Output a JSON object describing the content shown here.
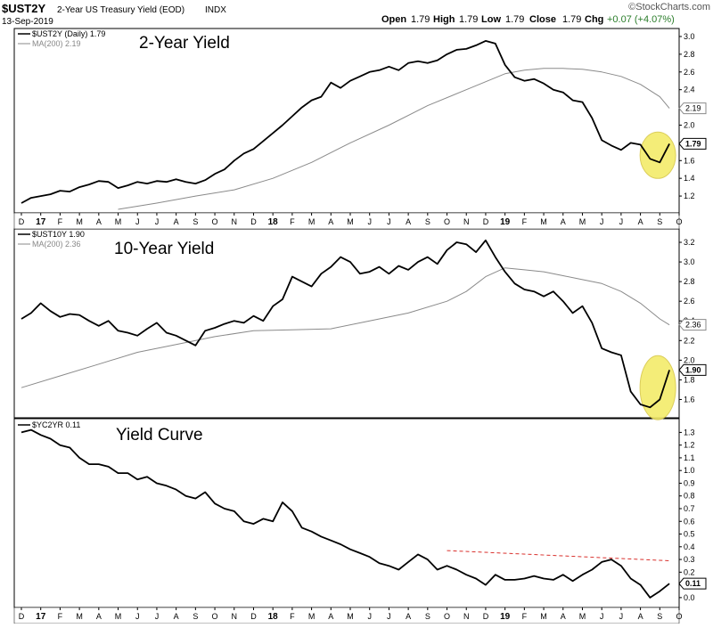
{
  "header": {
    "symbol": "$UST2Y",
    "description": "2-Year US Treasury Yield (EOD)",
    "exchange": "INDX",
    "date": "13-Sep-2019",
    "open_label": "Open",
    "open": "1.79",
    "high_label": "High",
    "high": "1.79",
    "low_label": "Low",
    "low": "1.79",
    "close_label": "Close",
    "close": "1.79",
    "chg_label": "Chg",
    "chg": "+0.07 (+4.07%)",
    "chg_color": "#2a7d2a",
    "brand": "©StockCharts.com"
  },
  "x_axis": {
    "labels": [
      "D",
      "17",
      "F",
      "M",
      "A",
      "M",
      "J",
      "J",
      "A",
      "S",
      "O",
      "N",
      "D",
      "18",
      "F",
      "M",
      "A",
      "M",
      "J",
      "J",
      "A",
      "S",
      "O",
      "N",
      "D",
      "19",
      "F",
      "M",
      "A",
      "M",
      "J",
      "J",
      "A",
      "S",
      "O"
    ],
    "year_labels": [
      "17",
      "18",
      "19"
    ]
  },
  "colors": {
    "price_line": "#000000",
    "ma_line": "#8a8a8a",
    "highlight_fill": "#f3ec6a",
    "highlight_stroke": "#d8c84a",
    "trend_line": "#d9302c"
  },
  "chart_data": [
    {
      "type": "line",
      "title": "2-Year Yield",
      "legend": [
        "$UST2Y (Daily) 1.79",
        "MA(200) 2.19"
      ],
      "ylim": [
        1.05,
        3.05
      ],
      "yticks": [
        "3.0",
        "2.8",
        "2.6",
        "2.4",
        "2.2",
        "2.0",
        "1.8",
        "1.6",
        "1.4",
        "1.2"
      ],
      "ytick_values": [
        3.0,
        2.8,
        2.6,
        2.4,
        2.2,
        2.0,
        1.8,
        1.6,
        1.4,
        1.2
      ],
      "series": [
        {
          "name": "$UST2Y (Daily)",
          "x": [
            0,
            0.5,
            1,
            1.5,
            2,
            2.5,
            3,
            3.5,
            4,
            4.5,
            5,
            5.5,
            6,
            6.5,
            7,
            7.5,
            8,
            8.5,
            9,
            9.5,
            10,
            10.5,
            11,
            11.5,
            12,
            12.5,
            13,
            13.5,
            14,
            14.5,
            15,
            15.5,
            16,
            16.5,
            17,
            17.5,
            18,
            18.5,
            19,
            19.5,
            20,
            20.5,
            21,
            21.5,
            22,
            22.5,
            23,
            23.5,
            24,
            24.5,
            25,
            25.5,
            26,
            26.5,
            27,
            27.5,
            28,
            28.5,
            29,
            29.5,
            30,
            30.5,
            31,
            31.5,
            32,
            32.5,
            33,
            33.5
          ],
          "values": [
            1.12,
            1.18,
            1.2,
            1.22,
            1.26,
            1.25,
            1.3,
            1.33,
            1.37,
            1.36,
            1.29,
            1.32,
            1.36,
            1.34,
            1.37,
            1.36,
            1.39,
            1.36,
            1.34,
            1.38,
            1.45,
            1.5,
            1.6,
            1.68,
            1.73,
            1.82,
            1.91,
            2.0,
            2.1,
            2.2,
            2.28,
            2.32,
            2.48,
            2.42,
            2.5,
            2.55,
            2.6,
            2.62,
            2.66,
            2.62,
            2.7,
            2.72,
            2.7,
            2.73,
            2.8,
            2.85,
            2.86,
            2.9,
            2.95,
            2.92,
            2.68,
            2.54,
            2.5,
            2.52,
            2.47,
            2.4,
            2.37,
            2.28,
            2.26,
            2.08,
            1.83,
            1.77,
            1.72,
            1.8,
            1.78,
            1.62,
            1.58,
            1.79
          ],
          "color": "#000000"
        },
        {
          "name": "MA(200)",
          "x": [
            5,
            7,
            9,
            11,
            13,
            15,
            17,
            19,
            21,
            23,
            25,
            26,
            27,
            28,
            29,
            30,
            31,
            32,
            33,
            33.5
          ],
          "values": [
            1.05,
            1.12,
            1.2,
            1.27,
            1.4,
            1.58,
            1.8,
            2.0,
            2.22,
            2.4,
            2.58,
            2.62,
            2.64,
            2.64,
            2.63,
            2.6,
            2.55,
            2.46,
            2.32,
            2.19
          ],
          "color": "#8a8a8a"
        }
      ],
      "tags": [
        {
          "label": "2.19",
          "value": 2.19,
          "style": "ma"
        },
        {
          "label": "1.79",
          "value": 1.79,
          "style": "price"
        }
      ]
    },
    {
      "type": "line",
      "title": "10-Year Yield",
      "legend": [
        "$UST10Y 1.90",
        "MA(200) 2.36"
      ],
      "ylim": [
        1.45,
        3.3
      ],
      "yticks": [
        "3.2",
        "3.0",
        "2.8",
        "2.6",
        "2.4",
        "2.2",
        "2.0",
        "1.8",
        "1.6"
      ],
      "ytick_values": [
        3.2,
        3.0,
        2.8,
        2.6,
        2.4,
        2.2,
        2.0,
        1.8,
        1.6
      ],
      "series": [
        {
          "name": "$UST10Y",
          "x": [
            0,
            0.5,
            1,
            1.5,
            2,
            2.5,
            3,
            3.5,
            4,
            4.5,
            5,
            5.5,
            6,
            6.5,
            7,
            7.5,
            8,
            8.5,
            9,
            9.5,
            10,
            10.5,
            11,
            11.5,
            12,
            12.5,
            13,
            13.5,
            14,
            14.5,
            15,
            15.5,
            16,
            16.5,
            17,
            17.5,
            18,
            18.5,
            19,
            19.5,
            20,
            20.5,
            21,
            21.5,
            22,
            22.5,
            23,
            23.5,
            24,
            24.5,
            25,
            25.5,
            26,
            26.5,
            27,
            27.5,
            28,
            28.5,
            29,
            29.5,
            30,
            30.5,
            31,
            31.5,
            32,
            32.5,
            33,
            33.5
          ],
          "values": [
            2.42,
            2.48,
            2.58,
            2.5,
            2.44,
            2.47,
            2.46,
            2.4,
            2.35,
            2.4,
            2.3,
            2.28,
            2.25,
            2.32,
            2.38,
            2.28,
            2.25,
            2.2,
            2.15,
            2.3,
            2.33,
            2.37,
            2.4,
            2.38,
            2.45,
            2.4,
            2.55,
            2.62,
            2.85,
            2.8,
            2.75,
            2.88,
            2.95,
            3.05,
            3.0,
            2.88,
            2.9,
            2.95,
            2.88,
            2.96,
            2.92,
            3.0,
            3.05,
            2.98,
            3.12,
            3.2,
            3.18,
            3.1,
            3.22,
            3.05,
            2.9,
            2.78,
            2.72,
            2.7,
            2.65,
            2.7,
            2.6,
            2.48,
            2.55,
            2.38,
            2.12,
            2.08,
            2.05,
            1.68,
            1.55,
            1.52,
            1.6,
            1.9
          ],
          "color": "#000000"
        },
        {
          "name": "MA(200)",
          "x": [
            0,
            2,
            4,
            6,
            8,
            10,
            12,
            14,
            16,
            18,
            20,
            22,
            23,
            24,
            25,
            26,
            27,
            28,
            29,
            30,
            31,
            32,
            33,
            33.5
          ],
          "values": [
            1.72,
            1.84,
            1.96,
            2.08,
            2.16,
            2.24,
            2.3,
            2.31,
            2.32,
            2.4,
            2.48,
            2.6,
            2.7,
            2.85,
            2.94,
            2.92,
            2.9,
            2.86,
            2.82,
            2.78,
            2.7,
            2.58,
            2.42,
            2.36
          ],
          "color": "#8a8a8a"
        }
      ],
      "tags": [
        {
          "label": "2.36",
          "value": 2.36,
          "style": "ma"
        },
        {
          "label": "1.90",
          "value": 1.9,
          "style": "price"
        }
      ]
    },
    {
      "type": "line",
      "title": "Yield Curve",
      "legend": [
        "$YC2YR 0.11"
      ],
      "ylim": [
        -0.05,
        1.38
      ],
      "yticks": [
        "1.3",
        "1.2",
        "1.1",
        "1.0",
        "0.9",
        "0.8",
        "0.7",
        "0.6",
        "0.5",
        "0.4",
        "0.3",
        "0.2",
        "0.1",
        "0.0"
      ],
      "ytick_values": [
        1.3,
        1.2,
        1.1,
        1.0,
        0.9,
        0.8,
        0.7,
        0.6,
        0.5,
        0.4,
        0.3,
        0.2,
        0.1,
        0.0
      ],
      "series": [
        {
          "name": "$YC2YR",
          "x": [
            0,
            0.5,
            1,
            1.5,
            2,
            2.5,
            3,
            3.5,
            4,
            4.5,
            5,
            5.5,
            6,
            6.5,
            7,
            7.5,
            8,
            8.5,
            9,
            9.5,
            10,
            10.5,
            11,
            11.5,
            12,
            12.5,
            13,
            13.5,
            14,
            14.5,
            15,
            15.5,
            16,
            16.5,
            17,
            17.5,
            18,
            18.5,
            19,
            19.5,
            20,
            20.5,
            21,
            21.5,
            22,
            22.5,
            23,
            23.5,
            24,
            24.5,
            25,
            25.5,
            26,
            26.5,
            27,
            27.5,
            28,
            28.5,
            29,
            29.5,
            30,
            30.5,
            31,
            31.5,
            32,
            32.5,
            33,
            33.5
          ],
          "values": [
            1.3,
            1.32,
            1.28,
            1.25,
            1.2,
            1.18,
            1.1,
            1.05,
            1.05,
            1.03,
            0.98,
            0.98,
            0.93,
            0.95,
            0.9,
            0.88,
            0.85,
            0.8,
            0.78,
            0.83,
            0.74,
            0.7,
            0.68,
            0.6,
            0.58,
            0.62,
            0.6,
            0.75,
            0.68,
            0.55,
            0.52,
            0.48,
            0.45,
            0.42,
            0.38,
            0.35,
            0.32,
            0.27,
            0.25,
            0.22,
            0.28,
            0.34,
            0.3,
            0.22,
            0.25,
            0.22,
            0.18,
            0.15,
            0.1,
            0.18,
            0.14,
            0.14,
            0.15,
            0.17,
            0.15,
            0.14,
            0.18,
            0.13,
            0.18,
            0.22,
            0.28,
            0.3,
            0.25,
            0.15,
            0.1,
            0.0,
            0.05,
            0.11
          ],
          "color": "#000000"
        }
      ],
      "trend_line": {
        "x": [
          22,
          33.5
        ],
        "values": [
          0.37,
          0.29
        ]
      },
      "tags": [
        {
          "label": "0.11",
          "value": 0.11,
          "style": "price"
        }
      ]
    }
  ]
}
